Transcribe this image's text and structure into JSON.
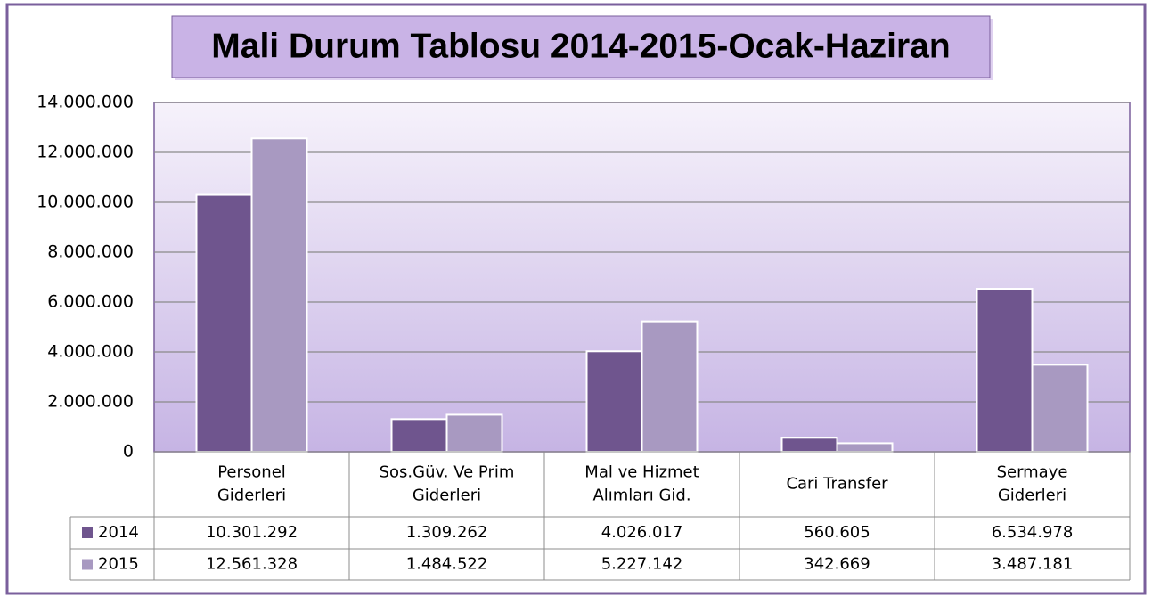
{
  "chart_data": {
    "type": "bar",
    "title": "Mali Durum Tablosu 2014-2015-Ocak-Haziran",
    "categories": [
      [
        "Personel",
        "Giderleri"
      ],
      [
        "Sos.Güv. Ve Prim",
        "Giderleri"
      ],
      [
        "Mal ve Hizmet",
        "Alımları Gid."
      ],
      [
        "Cari Transfer"
      ],
      [
        "Sermaye",
        "Giderleri"
      ]
    ],
    "series": [
      {
        "name": "2014",
        "color": "#6f558e",
        "values": [
          10301292,
          1309262,
          4026017,
          560605,
          6534978
        ],
        "value_labels": [
          "10.301.292",
          "1.309.262",
          "4.026.017",
          "560.605",
          "6.534.978"
        ]
      },
      {
        "name": "2015",
        "color": "#a899c1",
        "values": [
          12561328,
          1484522,
          5227142,
          342669,
          3487181
        ],
        "value_labels": [
          "12.561.328",
          "1.484.522",
          "5.227.142",
          "342.669",
          "3.487.181"
        ]
      }
    ],
    "ylim": [
      0,
      14000000
    ],
    "yticks": [
      0,
      {
        "value": 2000000,
        "label": "2.000.000"
      },
      {
        "value": 4000000,
        "label": "4.000.000"
      },
      {
        "value": 6000000,
        "label": "6.000.000"
      },
      {
        "value": 8000000,
        "label": "8.000.000"
      },
      {
        "value": 10000000,
        "label": "10.000.000"
      },
      {
        "value": 12000000,
        "label": "12.000.000"
      },
      {
        "value": 14000000,
        "label": "14.000.000"
      }
    ],
    "grid": true,
    "data_table": true
  }
}
